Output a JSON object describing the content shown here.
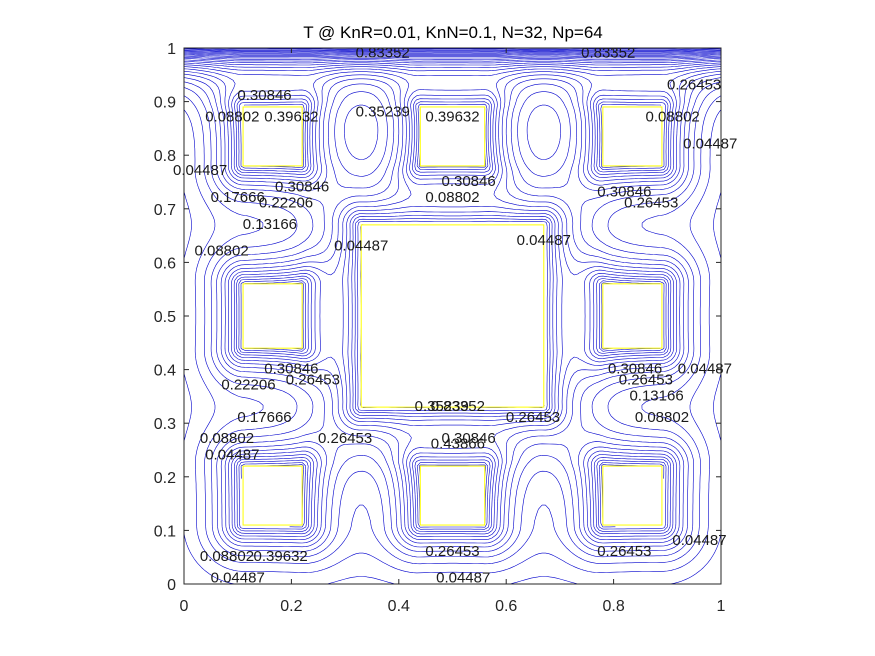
{
  "chart_data": {
    "type": "contour",
    "title": "T @ KnR=0.01, KnN=0.1, N=32, Np=64",
    "xlabel": "",
    "ylabel": "",
    "xlim": [
      0,
      1
    ],
    "ylim": [
      0,
      1
    ],
    "x_ticks": [
      "0",
      "0.2",
      "0.4",
      "0.6",
      "0.8",
      "1"
    ],
    "y_ticks": [
      "0",
      "0.1",
      "0.2",
      "0.3",
      "0.4",
      "0.5",
      "0.6",
      "0.7",
      "0.8",
      "0.9",
      "1"
    ],
    "grid": false,
    "legend": "none",
    "line_color": "#0000cc",
    "obstacle_color": "#ffff00",
    "obstacles": [
      {
        "x": [
          0.11,
          0.22
        ],
        "y": [
          0.78,
          0.89
        ]
      },
      {
        "x": [
          0.44,
          0.56
        ],
        "y": [
          0.78,
          0.89
        ]
      },
      {
        "x": [
          0.78,
          0.89
        ],
        "y": [
          0.78,
          0.89
        ]
      },
      {
        "x": [
          0.11,
          0.22
        ],
        "y": [
          0.44,
          0.56
        ]
      },
      {
        "x": [
          0.33,
          0.67
        ],
        "y": [
          0.33,
          0.67
        ]
      },
      {
        "x": [
          0.78,
          0.89
        ],
        "y": [
          0.44,
          0.56
        ]
      },
      {
        "x": [
          0.11,
          0.22
        ],
        "y": [
          0.11,
          0.22
        ]
      },
      {
        "x": [
          0.44,
          0.56
        ],
        "y": [
          0.11,
          0.22
        ]
      },
      {
        "x": [
          0.78,
          0.89
        ],
        "y": [
          0.11,
          0.22
        ]
      }
    ],
    "contour_labels": [
      {
        "text": "0.04487",
        "x": 0.03,
        "y": 0.77
      },
      {
        "text": "0.04487",
        "x": 0.33,
        "y": 0.63
      },
      {
        "text": "0.04487",
        "x": 0.67,
        "y": 0.64
      },
      {
        "text": "0.04487",
        "x": 0.98,
        "y": 0.82
      },
      {
        "text": "0.04487",
        "x": 0.97,
        "y": 0.4
      },
      {
        "text": "0.04487",
        "x": 0.96,
        "y": 0.08
      },
      {
        "text": "0.04487",
        "x": 0.09,
        "y": 0.24
      },
      {
        "text": "0.04487",
        "x": 0.1,
        "y": 0.01
      },
      {
        "text": "0.04487",
        "x": 0.52,
        "y": 0.01
      },
      {
        "text": "0.08802",
        "x": 0.09,
        "y": 0.87
      },
      {
        "text": "0.08802",
        "x": 0.07,
        "y": 0.62
      },
      {
        "text": "0.08802",
        "x": 0.5,
        "y": 0.72
      },
      {
        "text": "0.08802",
        "x": 0.91,
        "y": 0.87
      },
      {
        "text": "0.08802",
        "x": 0.08,
        "y": 0.27
      },
      {
        "text": "0.08802",
        "x": 0.89,
        "y": 0.31
      },
      {
        "text": "0.08802",
        "x": 0.08,
        "y": 0.05
      },
      {
        "text": "0.13166",
        "x": 0.16,
        "y": 0.67
      },
      {
        "text": "0.13166",
        "x": 0.88,
        "y": 0.35
      },
      {
        "text": "0.17666",
        "x": 0.1,
        "y": 0.72
      },
      {
        "text": "0.17666",
        "x": 0.15,
        "y": 0.31
      },
      {
        "text": "0.22206",
        "x": 0.19,
        "y": 0.71
      },
      {
        "text": "0.22206",
        "x": 0.12,
        "y": 0.37
      },
      {
        "text": "0.26453",
        "x": 0.3,
        "y": 0.27
      },
      {
        "text": "0.26453",
        "x": 0.65,
        "y": 0.31
      },
      {
        "text": "0.26453",
        "x": 0.24,
        "y": 0.38
      },
      {
        "text": "0.26453",
        "x": 0.87,
        "y": 0.71
      },
      {
        "text": "0.26453",
        "x": 0.86,
        "y": 0.38
      },
      {
        "text": "0.26453",
        "x": 0.95,
        "y": 0.93
      },
      {
        "text": "0.26453",
        "x": 0.5,
        "y": 0.06
      },
      {
        "text": "0.26453",
        "x": 0.82,
        "y": 0.06
      },
      {
        "text": "0.30846",
        "x": 0.22,
        "y": 0.74
      },
      {
        "text": "0.30846",
        "x": 0.2,
        "y": 0.4
      },
      {
        "text": "0.30846",
        "x": 0.84,
        "y": 0.4
      },
      {
        "text": "0.30846",
        "x": 0.53,
        "y": 0.75
      },
      {
        "text": "0.30846",
        "x": 0.82,
        "y": 0.73
      },
      {
        "text": "0.30846",
        "x": 0.15,
        "y": 0.91
      },
      {
        "text": "0.30846",
        "x": 0.53,
        "y": 0.27
      },
      {
        "text": "0.35239",
        "x": 0.37,
        "y": 0.88
      },
      {
        "text": "0.35239",
        "x": 0.48,
        "y": 0.33
      },
      {
        "text": "0.39632",
        "x": 0.2,
        "y": 0.87
      },
      {
        "text": "0.39632",
        "x": 0.5,
        "y": 0.87
      },
      {
        "text": "0.39632",
        "x": 0.18,
        "y": 0.05
      },
      {
        "text": "0.43866",
        "x": 0.51,
        "y": 0.26
      },
      {
        "text": "0.83352",
        "x": 0.37,
        "y": 0.99
      },
      {
        "text": "0.83352",
        "x": 0.79,
        "y": 0.99
      },
      {
        "text": "0.83352",
        "x": 0.51,
        "y": 0.33
      }
    ]
  }
}
